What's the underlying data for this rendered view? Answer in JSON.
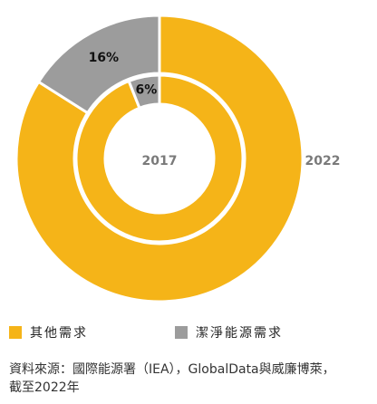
{
  "chart_data": {
    "type": "pie",
    "subtype": "nested-donut",
    "series": [
      {
        "name": "2022",
        "values": [
          84,
          16
        ],
        "data_labels": [
          "",
          "16%"
        ]
      },
      {
        "name": "2017",
        "values": [
          94,
          6
        ],
        "data_labels": [
          "",
          "6%"
        ]
      }
    ],
    "categories": [
      "其他需求",
      "潔淨能源需求"
    ],
    "colors": [
      "#F5B418",
      "#9C9C9C"
    ],
    "legend_position": "bottom-left"
  },
  "source": {
    "line1": "資料來源：國際能源署（IEA），GlobalData與威廉博萊，",
    "line2": "截至2022年"
  }
}
